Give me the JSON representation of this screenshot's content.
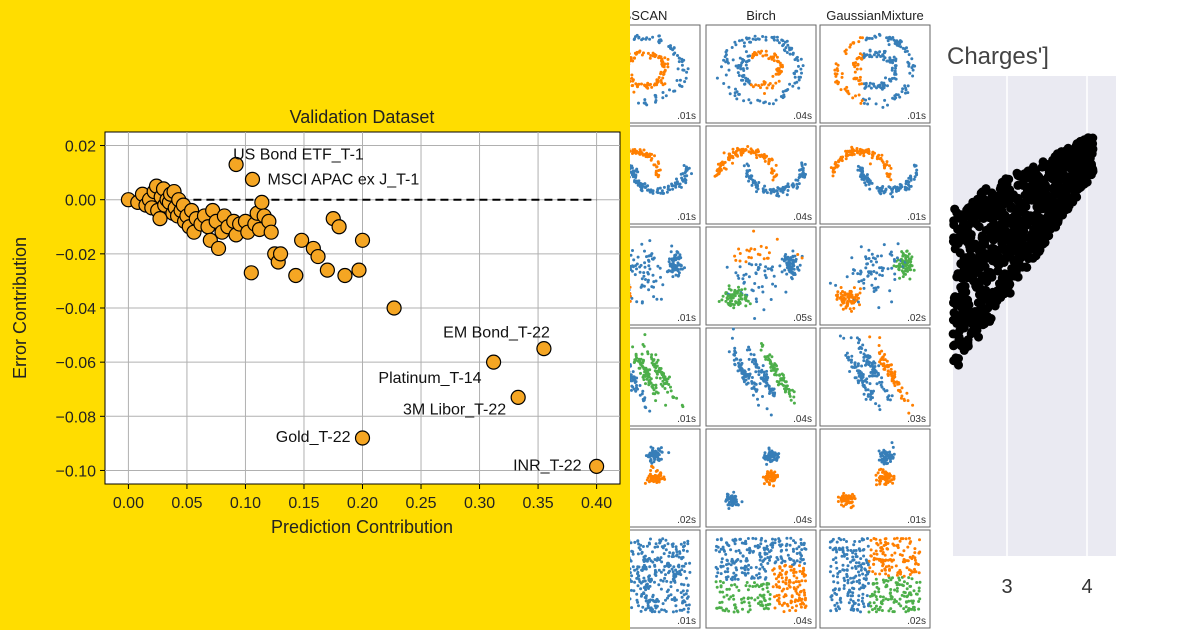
{
  "chart_data": [
    {
      "type": "scatter",
      "title": "Validation Dataset",
      "xlabel": "Prediction Contribution",
      "ylabel": "Error Contribution",
      "xlim": [
        -0.02,
        0.42
      ],
      "ylim": [
        -0.105,
        0.025
      ],
      "xticks": [
        0.0,
        0.05,
        0.1,
        0.15,
        0.2,
        0.25,
        0.3,
        0.35,
        0.4
      ],
      "xtick_labels": [
        "0.00",
        "0.05",
        "0.10",
        "0.15",
        "0.20",
        "0.25",
        "0.30",
        "0.35",
        "0.40"
      ],
      "yticks": [
        0.02,
        0.0,
        -0.02,
        -0.04,
        -0.06,
        -0.08,
        -0.1
      ],
      "ytick_labels": [
        "0.02",
        "0.00",
        "−0.02",
        "−0.04",
        "−0.06",
        "−0.08",
        "−0.10"
      ],
      "grid": true,
      "reference_line": {
        "y": 0,
        "style": "dashed"
      },
      "marker_color": "#f5a623",
      "points": [
        {
          "x": 0.0,
          "y": 0.0
        },
        {
          "x": 0.008,
          "y": -0.001
        },
        {
          "x": 0.012,
          "y": 0.002
        },
        {
          "x": 0.015,
          "y": -0.002
        },
        {
          "x": 0.018,
          "y": 0.0
        },
        {
          "x": 0.02,
          "y": -0.003
        },
        {
          "x": 0.022,
          "y": 0.003
        },
        {
          "x": 0.024,
          "y": 0.005
        },
        {
          "x": 0.025,
          "y": -0.004
        },
        {
          "x": 0.027,
          "y": -0.007
        },
        {
          "x": 0.028,
          "y": 0.001
        },
        {
          "x": 0.03,
          "y": 0.004
        },
        {
          "x": 0.031,
          "y": -0.002
        },
        {
          "x": 0.033,
          "y": 0.0
        },
        {
          "x": 0.035,
          "y": -0.001
        },
        {
          "x": 0.036,
          "y": 0.002
        },
        {
          "x": 0.038,
          "y": -0.005
        },
        {
          "x": 0.039,
          "y": 0.003
        },
        {
          "x": 0.04,
          "y": -0.003
        },
        {
          "x": 0.042,
          "y": -0.006
        },
        {
          "x": 0.043,
          "y": 0.0
        },
        {
          "x": 0.045,
          "y": -0.004
        },
        {
          "x": 0.047,
          "y": -0.002
        },
        {
          "x": 0.048,
          "y": -0.008
        },
        {
          "x": 0.05,
          "y": -0.006
        },
        {
          "x": 0.052,
          "y": -0.01
        },
        {
          "x": 0.054,
          "y": -0.004
        },
        {
          "x": 0.056,
          "y": -0.012
        },
        {
          "x": 0.058,
          "y": -0.007
        },
        {
          "x": 0.062,
          "y": -0.009
        },
        {
          "x": 0.065,
          "y": -0.006
        },
        {
          "x": 0.068,
          "y": -0.01
        },
        {
          "x": 0.07,
          "y": -0.015
        },
        {
          "x": 0.072,
          "y": -0.004
        },
        {
          "x": 0.075,
          "y": -0.008
        },
        {
          "x": 0.077,
          "y": -0.018
        },
        {
          "x": 0.08,
          "y": -0.012
        },
        {
          "x": 0.082,
          "y": -0.006
        },
        {
          "x": 0.085,
          "y": -0.01
        },
        {
          "x": 0.09,
          "y": -0.008
        },
        {
          "x": 0.092,
          "y": -0.013
        },
        {
          "x": 0.095,
          "y": -0.009
        },
        {
          "x": 0.1,
          "y": -0.008
        },
        {
          "x": 0.102,
          "y": -0.012
        },
        {
          "x": 0.105,
          "y": -0.027
        },
        {
          "x": 0.108,
          "y": -0.009
        },
        {
          "x": 0.11,
          "y": -0.005
        },
        {
          "x": 0.112,
          "y": -0.011
        },
        {
          "x": 0.114,
          "y": -0.001
        },
        {
          "x": 0.116,
          "y": -0.006
        },
        {
          "x": 0.12,
          "y": -0.008
        },
        {
          "x": 0.122,
          "y": -0.012
        },
        {
          "x": 0.125,
          "y": -0.02
        },
        {
          "x": 0.128,
          "y": -0.023
        },
        {
          "x": 0.13,
          "y": -0.02
        },
        {
          "x": 0.143,
          "y": -0.028
        },
        {
          "x": 0.148,
          "y": -0.015
        },
        {
          "x": 0.158,
          "y": -0.018
        },
        {
          "x": 0.162,
          "y": -0.021
        },
        {
          "x": 0.17,
          "y": -0.026
        },
        {
          "x": 0.175,
          "y": -0.007
        },
        {
          "x": 0.18,
          "y": -0.01
        },
        {
          "x": 0.185,
          "y": -0.028
        },
        {
          "x": 0.197,
          "y": -0.026
        },
        {
          "x": 0.2,
          "y": -0.015
        },
        {
          "x": 0.227,
          "y": -0.04
        },
        {
          "x": 0.092,
          "y": 0.013,
          "label": "US Bond ETF_T-1"
        },
        {
          "x": 0.106,
          "y": 0.0075,
          "label": "MSCI APAC ex J_T-1"
        },
        {
          "x": 0.355,
          "y": -0.055,
          "label": "EM Bond_T-22"
        },
        {
          "x": 0.312,
          "y": -0.06,
          "label": "Platinum_T-14"
        },
        {
          "x": 0.333,
          "y": -0.073,
          "label": "3M Libor_T-22"
        },
        {
          "x": 0.2,
          "y": -0.088,
          "label": "Gold_T-22"
        },
        {
          "x": 0.4,
          "y": -0.0985,
          "label": "INR_T-22"
        }
      ]
    },
    {
      "type": "scatter",
      "title": "",
      "columns": [
        "BSCAN",
        "Birch",
        "GaussianMixture"
      ],
      "timings": [
        [
          ".01s",
          ".04s",
          ".01s"
        ],
        [
          ".01s",
          ".04s",
          ".01s"
        ],
        [
          ".01s",
          ".05s",
          ".02s"
        ],
        [
          ".01s",
          ".04s",
          ".03s"
        ],
        [
          ".02s",
          ".04s",
          ".01s"
        ],
        [
          ".01s",
          ".04s",
          ".02s"
        ]
      ],
      "colors": [
        "#377eb8",
        "#ff7f00",
        "#4daf4a"
      ]
    },
    {
      "type": "scatter",
      "title": "Charges']",
      "xtick_labels": [
        "3",
        "4"
      ],
      "marker_color": "#000000",
      "background": "#eaeaf2"
    }
  ]
}
